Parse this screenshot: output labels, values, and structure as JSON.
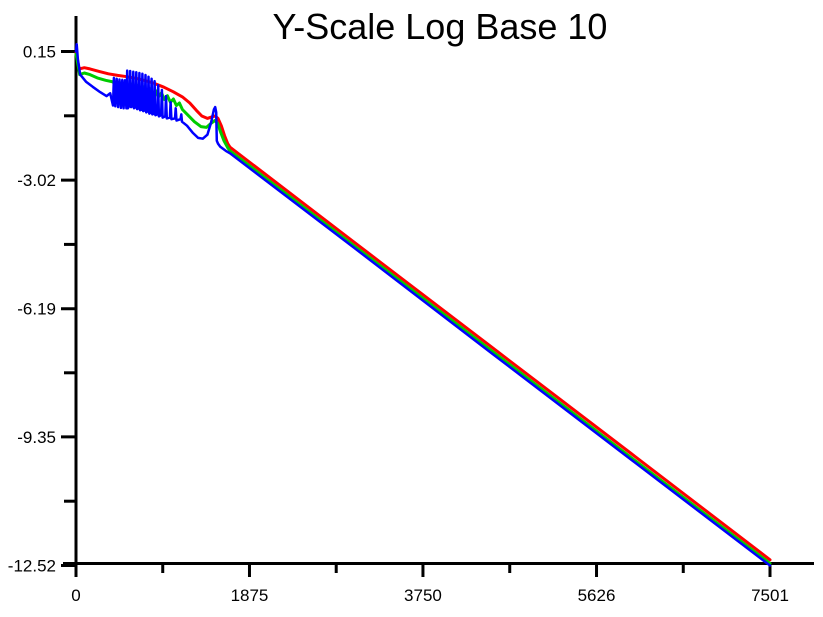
{
  "title": "Y-Scale Log Base 10",
  "colors": {
    "background": "#ffffff",
    "axis": "#000000",
    "series_red": "#ff0000",
    "series_green": "#00cc00",
    "series_blue": "#0000ff"
  },
  "chart_data": {
    "type": "line",
    "title": "Y-Scale Log Base 10",
    "xlabel": "",
    "ylabel": "",
    "xlim": [
      0,
      7501
    ],
    "ylim": [
      -12.52,
      0.15
    ],
    "grid": false,
    "legend": "none",
    "x_major_ticks": {
      "values": [
        0,
        1875,
        3750,
        5626,
        7501
      ],
      "labels": [
        "0",
        "1875",
        "3750",
        "5626",
        "7501"
      ]
    },
    "x_minor_ticks": [
      937.5,
      2812.5,
      4688.0,
      6563.5
    ],
    "y_major_ticks": {
      "values": [
        0.15,
        -3.02,
        -6.19,
        -9.35,
        -12.52
      ],
      "labels": [
        "0.15",
        "-3.02",
        "-6.19",
        "-9.35",
        "-12.52"
      ]
    },
    "y_minor_ticks": [
      -1.435,
      -4.605,
      -7.77,
      -10.935
    ],
    "series": [
      {
        "name": "red",
        "color": "#ff0000",
        "stroke_width": 3,
        "points": [
          [
            0,
            0.12
          ],
          [
            10,
            0.02
          ],
          [
            35,
            -0.28
          ],
          [
            90,
            -0.25
          ],
          [
            150,
            -0.28
          ],
          [
            250,
            -0.34
          ],
          [
            350,
            -0.4
          ],
          [
            450,
            -0.44
          ],
          [
            550,
            -0.47
          ],
          [
            650,
            -0.51
          ],
          [
            750,
            -0.57
          ],
          [
            850,
            -0.64
          ],
          [
            950,
            -0.73
          ],
          [
            1050,
            -0.84
          ],
          [
            1150,
            -0.97
          ],
          [
            1230,
            -1.12
          ],
          [
            1300,
            -1.3
          ],
          [
            1360,
            -1.44
          ],
          [
            1420,
            -1.5
          ],
          [
            1470,
            -1.46
          ],
          [
            1505,
            -1.44
          ],
          [
            1535,
            -1.5
          ],
          [
            1570,
            -1.68
          ],
          [
            1605,
            -1.92
          ],
          [
            1640,
            -2.12
          ],
          [
            1665,
            -2.21
          ],
          [
            3000,
            -4.54
          ],
          [
            4500,
            -7.15
          ],
          [
            6000,
            -9.76
          ],
          [
            7501,
            -12.38
          ]
        ]
      },
      {
        "name": "green",
        "color": "#00cc00",
        "stroke_width": 3,
        "points": [
          [
            0,
            0.08
          ],
          [
            10,
            -0.02
          ],
          [
            40,
            -0.42
          ],
          [
            90,
            -0.38
          ],
          [
            150,
            -0.42
          ],
          [
            230,
            -0.5
          ],
          [
            320,
            -0.56
          ],
          [
            400,
            -0.6
          ],
          [
            435,
            -0.72
          ],
          [
            468,
            -0.6
          ],
          [
            500,
            -0.74
          ],
          [
            533,
            -0.62
          ],
          [
            565,
            -0.76
          ],
          [
            598,
            -0.65
          ],
          [
            630,
            -0.79
          ],
          [
            663,
            -0.68
          ],
          [
            695,
            -0.82
          ],
          [
            728,
            -0.72
          ],
          [
            760,
            -0.86
          ],
          [
            793,
            -0.76
          ],
          [
            825,
            -0.91
          ],
          [
            858,
            -0.81
          ],
          [
            890,
            -0.97
          ],
          [
            923,
            -0.87
          ],
          [
            955,
            -1.03
          ],
          [
            988,
            -0.94
          ],
          [
            1020,
            -1.1
          ],
          [
            1053,
            -1.02
          ],
          [
            1085,
            -1.18
          ],
          [
            1118,
            -1.12
          ],
          [
            1150,
            -1.28
          ],
          [
            1210,
            -1.42
          ],
          [
            1280,
            -1.58
          ],
          [
            1350,
            -1.7
          ],
          [
            1410,
            -1.72
          ],
          [
            1460,
            -1.62
          ],
          [
            1500,
            -1.55
          ],
          [
            1530,
            -1.62
          ],
          [
            1565,
            -1.85
          ],
          [
            1600,
            -2.05
          ],
          [
            1640,
            -2.22
          ],
          [
            1665,
            -2.3
          ],
          [
            3000,
            -4.63
          ],
          [
            4500,
            -7.24
          ],
          [
            6000,
            -9.86
          ],
          [
            7501,
            -12.47
          ]
        ]
      },
      {
        "name": "blue",
        "color": "#0000ff",
        "stroke_width": 2.5,
        "points": [
          [
            0,
            0.15
          ],
          [
            8,
            0.33
          ],
          [
            20,
            -0.05
          ],
          [
            45,
            -0.42
          ],
          [
            110,
            -0.6
          ],
          [
            180,
            -0.72
          ],
          [
            260,
            -0.85
          ],
          [
            330,
            -0.95
          ],
          [
            370,
            -0.88
          ],
          [
            400,
            -1.18
          ],
          [
            410,
            -0.5
          ],
          [
            425,
            -1.2
          ],
          [
            440,
            -0.52
          ],
          [
            455,
            -1.22
          ],
          [
            470,
            -0.54
          ],
          [
            485,
            -1.24
          ],
          [
            500,
            -0.55
          ],
          [
            515,
            -1.25
          ],
          [
            530,
            -0.56
          ],
          [
            545,
            -1.25
          ],
          [
            553,
            -0.32
          ],
          [
            561,
            -1.25
          ],
          [
            578,
            -1.18
          ],
          [
            586,
            -0.33
          ],
          [
            594,
            -1.22
          ],
          [
            611,
            -1.2
          ],
          [
            619,
            -0.35
          ],
          [
            627,
            -1.25
          ],
          [
            644,
            -1.22
          ],
          [
            652,
            -0.36
          ],
          [
            660,
            -1.27
          ],
          [
            677,
            -1.25
          ],
          [
            685,
            -0.38
          ],
          [
            693,
            -1.3
          ],
          [
            710,
            -1.28
          ],
          [
            718,
            -0.4
          ],
          [
            726,
            -1.32
          ],
          [
            743,
            -1.3
          ],
          [
            751,
            -0.43
          ],
          [
            759,
            -1.35
          ],
          [
            776,
            -1.32
          ],
          [
            784,
            -0.47
          ],
          [
            792,
            -1.38
          ],
          [
            809,
            -1.35
          ],
          [
            817,
            -0.52
          ],
          [
            825,
            -1.4
          ],
          [
            842,
            -1.38
          ],
          [
            850,
            -0.58
          ],
          [
            858,
            -1.42
          ],
          [
            880,
            -1.4
          ],
          [
            888,
            -0.68
          ],
          [
            896,
            -1.45
          ],
          [
            920,
            -1.42
          ],
          [
            928,
            -0.8
          ],
          [
            936,
            -1.48
          ],
          [
            965,
            -1.45
          ],
          [
            973,
            -0.95
          ],
          [
            981,
            -1.5
          ],
          [
            1015,
            -1.48
          ],
          [
            1023,
            -1.1
          ],
          [
            1031,
            -1.52
          ],
          [
            1070,
            -1.5
          ],
          [
            1078,
            -1.25
          ],
          [
            1086,
            -1.55
          ],
          [
            1130,
            -1.52
          ],
          [
            1138,
            -1.4
          ],
          [
            1146,
            -1.58
          ],
          [
            1200,
            -1.68
          ],
          [
            1260,
            -1.85
          ],
          [
            1320,
            -1.98
          ],
          [
            1370,
            -2.0
          ],
          [
            1420,
            -1.9
          ],
          [
            1460,
            -1.6
          ],
          [
            1490,
            -1.28
          ],
          [
            1505,
            -1.22
          ],
          [
            1515,
            -1.35
          ],
          [
            1522,
            -2.05
          ],
          [
            1535,
            -2.12
          ],
          [
            1560,
            -2.2
          ],
          [
            1620,
            -2.3
          ],
          [
            1665,
            -2.36
          ],
          [
            3000,
            -4.68
          ],
          [
            4500,
            -7.3
          ],
          [
            6000,
            -9.91
          ],
          [
            7501,
            -12.52
          ]
        ]
      }
    ]
  }
}
